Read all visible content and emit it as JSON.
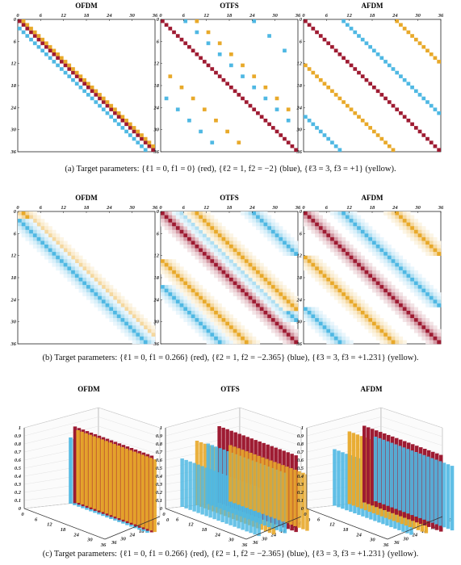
{
  "captions": {
    "a": "(a) Target parameters: {ℓ1 = 0, f1 = 0} (red), {ℓ2 = 1, f2 = −2} (blue), {ℓ3 = 3, f3 = +1} (yellow).",
    "b": "(b) Target parameters: {ℓ1 = 0, f1 = 0.266} (red), {ℓ2 = 1, f2 = −2.365} (blue), {ℓ3 = 3, f3 = +1.231} (yellow).",
    "c": "(c) Target parameters: {ℓ1 = 0, f1 = 0.266} (red), {ℓ2 = 1, f2 = −2.365} (blue), {ℓ3 = 3, f3 = +1.231} (yellow)."
  },
  "colors": {
    "red": "#9e1b32",
    "blue": "#4fb8e3",
    "yellow": "#e8a92a"
  },
  "chart_data": [
    {
      "type": "heatmap",
      "row": "a",
      "panels": [
        "OFDM",
        "OTFS",
        "AFDM"
      ],
      "ticks": [
        "0",
        "6",
        "12",
        "18",
        "24",
        "30",
        "36"
      ],
      "size": 36,
      "targets": [
        {
          "color": "red",
          "l": 0,
          "f": 0
        },
        {
          "color": "blue",
          "l": 1,
          "f": -2
        },
        {
          "color": "yellow",
          "l": 3,
          "f": 1
        }
      ]
    },
    {
      "type": "heatmap",
      "row": "b",
      "panels": [
        "OFDM",
        "OTFS",
        "AFDM"
      ],
      "ticks": [
        "0",
        "6",
        "12",
        "18",
        "24",
        "30",
        "36"
      ],
      "size": 36,
      "targets": [
        {
          "color": "red",
          "l": 0,
          "f": 0.266
        },
        {
          "color": "blue",
          "l": 1,
          "f": -2.365
        },
        {
          "color": "yellow",
          "l": 3,
          "f": 1.231
        }
      ]
    },
    {
      "type": "bar3d",
      "row": "c",
      "panels": [
        "OFDM",
        "OTFS",
        "AFDM"
      ],
      "zticks": [
        "0",
        "0.1",
        "0.2",
        "0.3",
        "0.4",
        "0.5",
        "0.6",
        "0.7",
        "0.8",
        "0.9",
        "1"
      ],
      "xticks": [
        "0",
        "6",
        "12",
        "18",
        "24",
        "30",
        "36"
      ],
      "yticks": [
        "0",
        "6",
        "12",
        "18",
        "24",
        "30",
        "36"
      ],
      "zlim": [
        0,
        1
      ],
      "targets": [
        {
          "color": "red",
          "l": 0,
          "f": 0.266
        },
        {
          "color": "blue",
          "l": 1,
          "f": -2.365
        },
        {
          "color": "yellow",
          "l": 3,
          "f": 1.231
        }
      ]
    }
  ]
}
